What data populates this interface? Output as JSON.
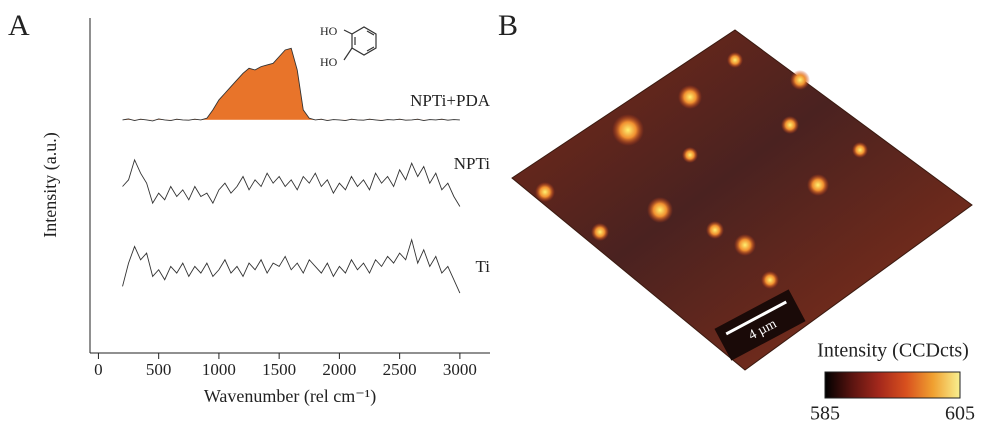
{
  "panels": {
    "a_label": "A",
    "b_label": "B"
  },
  "chart_data": {
    "type": "line",
    "xlabel": "Wavenumber (rel cm⁻¹)",
    "ylabel": "Intensity (a.u.)",
    "x": [
      200,
      250,
      300,
      350,
      400,
      450,
      500,
      550,
      600,
      650,
      700,
      750,
      800,
      850,
      900,
      950,
      1000,
      1050,
      1100,
      1150,
      1200,
      1250,
      1300,
      1350,
      1400,
      1450,
      1500,
      1550,
      1600,
      1650,
      1700,
      1750,
      1800,
      1850,
      1900,
      1950,
      2000,
      2050,
      2100,
      2150,
      2200,
      2250,
      2300,
      2350,
      2400,
      2450,
      2500,
      2550,
      2600,
      2650,
      2700,
      2750,
      2800,
      2850,
      2900,
      2950,
      3000
    ],
    "xlim": [
      -70,
      3250
    ],
    "xticks": [
      0,
      500,
      1000,
      1500,
      2000,
      2500,
      3000
    ],
    "ylim": [
      0,
      100
    ],
    "series": [
      {
        "name": "NPTi+PDA",
        "color": "#333333",
        "fill": "#e8742a",
        "values": [
          70,
          70.3,
          69.8,
          70.2,
          70,
          69.7,
          70.3,
          70,
          69.8,
          70.2,
          70,
          69.9,
          70.2,
          70,
          70.5,
          73,
          76,
          78,
          80,
          82,
          84,
          85.5,
          85,
          86,
          86.5,
          87,
          89,
          91,
          91.5,
          85,
          73,
          70.5,
          70,
          70.2,
          69.8,
          70.1,
          70,
          69.8,
          70.2,
          70,
          69.9,
          70.2,
          70,
          69.8,
          70.1,
          70,
          70.2,
          69.9,
          70,
          70.2,
          69.8,
          70.1,
          70,
          70.2,
          69.9,
          70.1,
          70
        ]
      },
      {
        "name": "NPTi",
        "color": "#333333",
        "values": [
          50,
          52,
          58,
          54,
          51,
          45,
          48,
          46,
          50,
          47,
          49,
          46,
          50,
          47,
          48,
          45,
          49,
          51,
          48,
          50,
          53,
          49,
          52,
          50,
          54,
          51,
          53,
          50,
          52,
          49,
          53,
          51,
          54,
          50,
          52,
          48,
          51,
          49,
          53,
          50,
          52,
          49,
          54,
          51,
          53,
          50,
          55,
          52,
          57,
          53,
          56,
          51,
          54,
          49,
          51,
          47,
          44
        ]
      },
      {
        "name": "Ti",
        "color": "#333333",
        "values": [
          20,
          27,
          32,
          28,
          30,
          23,
          25,
          22,
          26,
          24,
          27,
          23,
          26,
          24,
          27,
          23,
          25,
          28,
          24,
          26,
          23,
          27,
          25,
          28,
          24,
          27,
          26,
          29,
          25,
          27,
          24,
          28,
          26,
          24,
          27,
          23,
          26,
          24,
          28,
          25,
          27,
          24,
          28,
          26,
          29,
          27,
          30,
          28,
          34,
          27,
          31,
          26,
          29,
          24,
          26,
          22,
          18
        ]
      }
    ],
    "molecule_labels": [
      "HO",
      "HO"
    ]
  },
  "map": {
    "scale_bar": "4 µm",
    "colorbar": {
      "title": "Intensity (CCDcts)",
      "ticks": [
        585,
        605
      ],
      "colors": [
        "#000000",
        "#5a1410",
        "#a3281c",
        "#d8501e",
        "#f0a030",
        "#f8f090"
      ]
    }
  }
}
